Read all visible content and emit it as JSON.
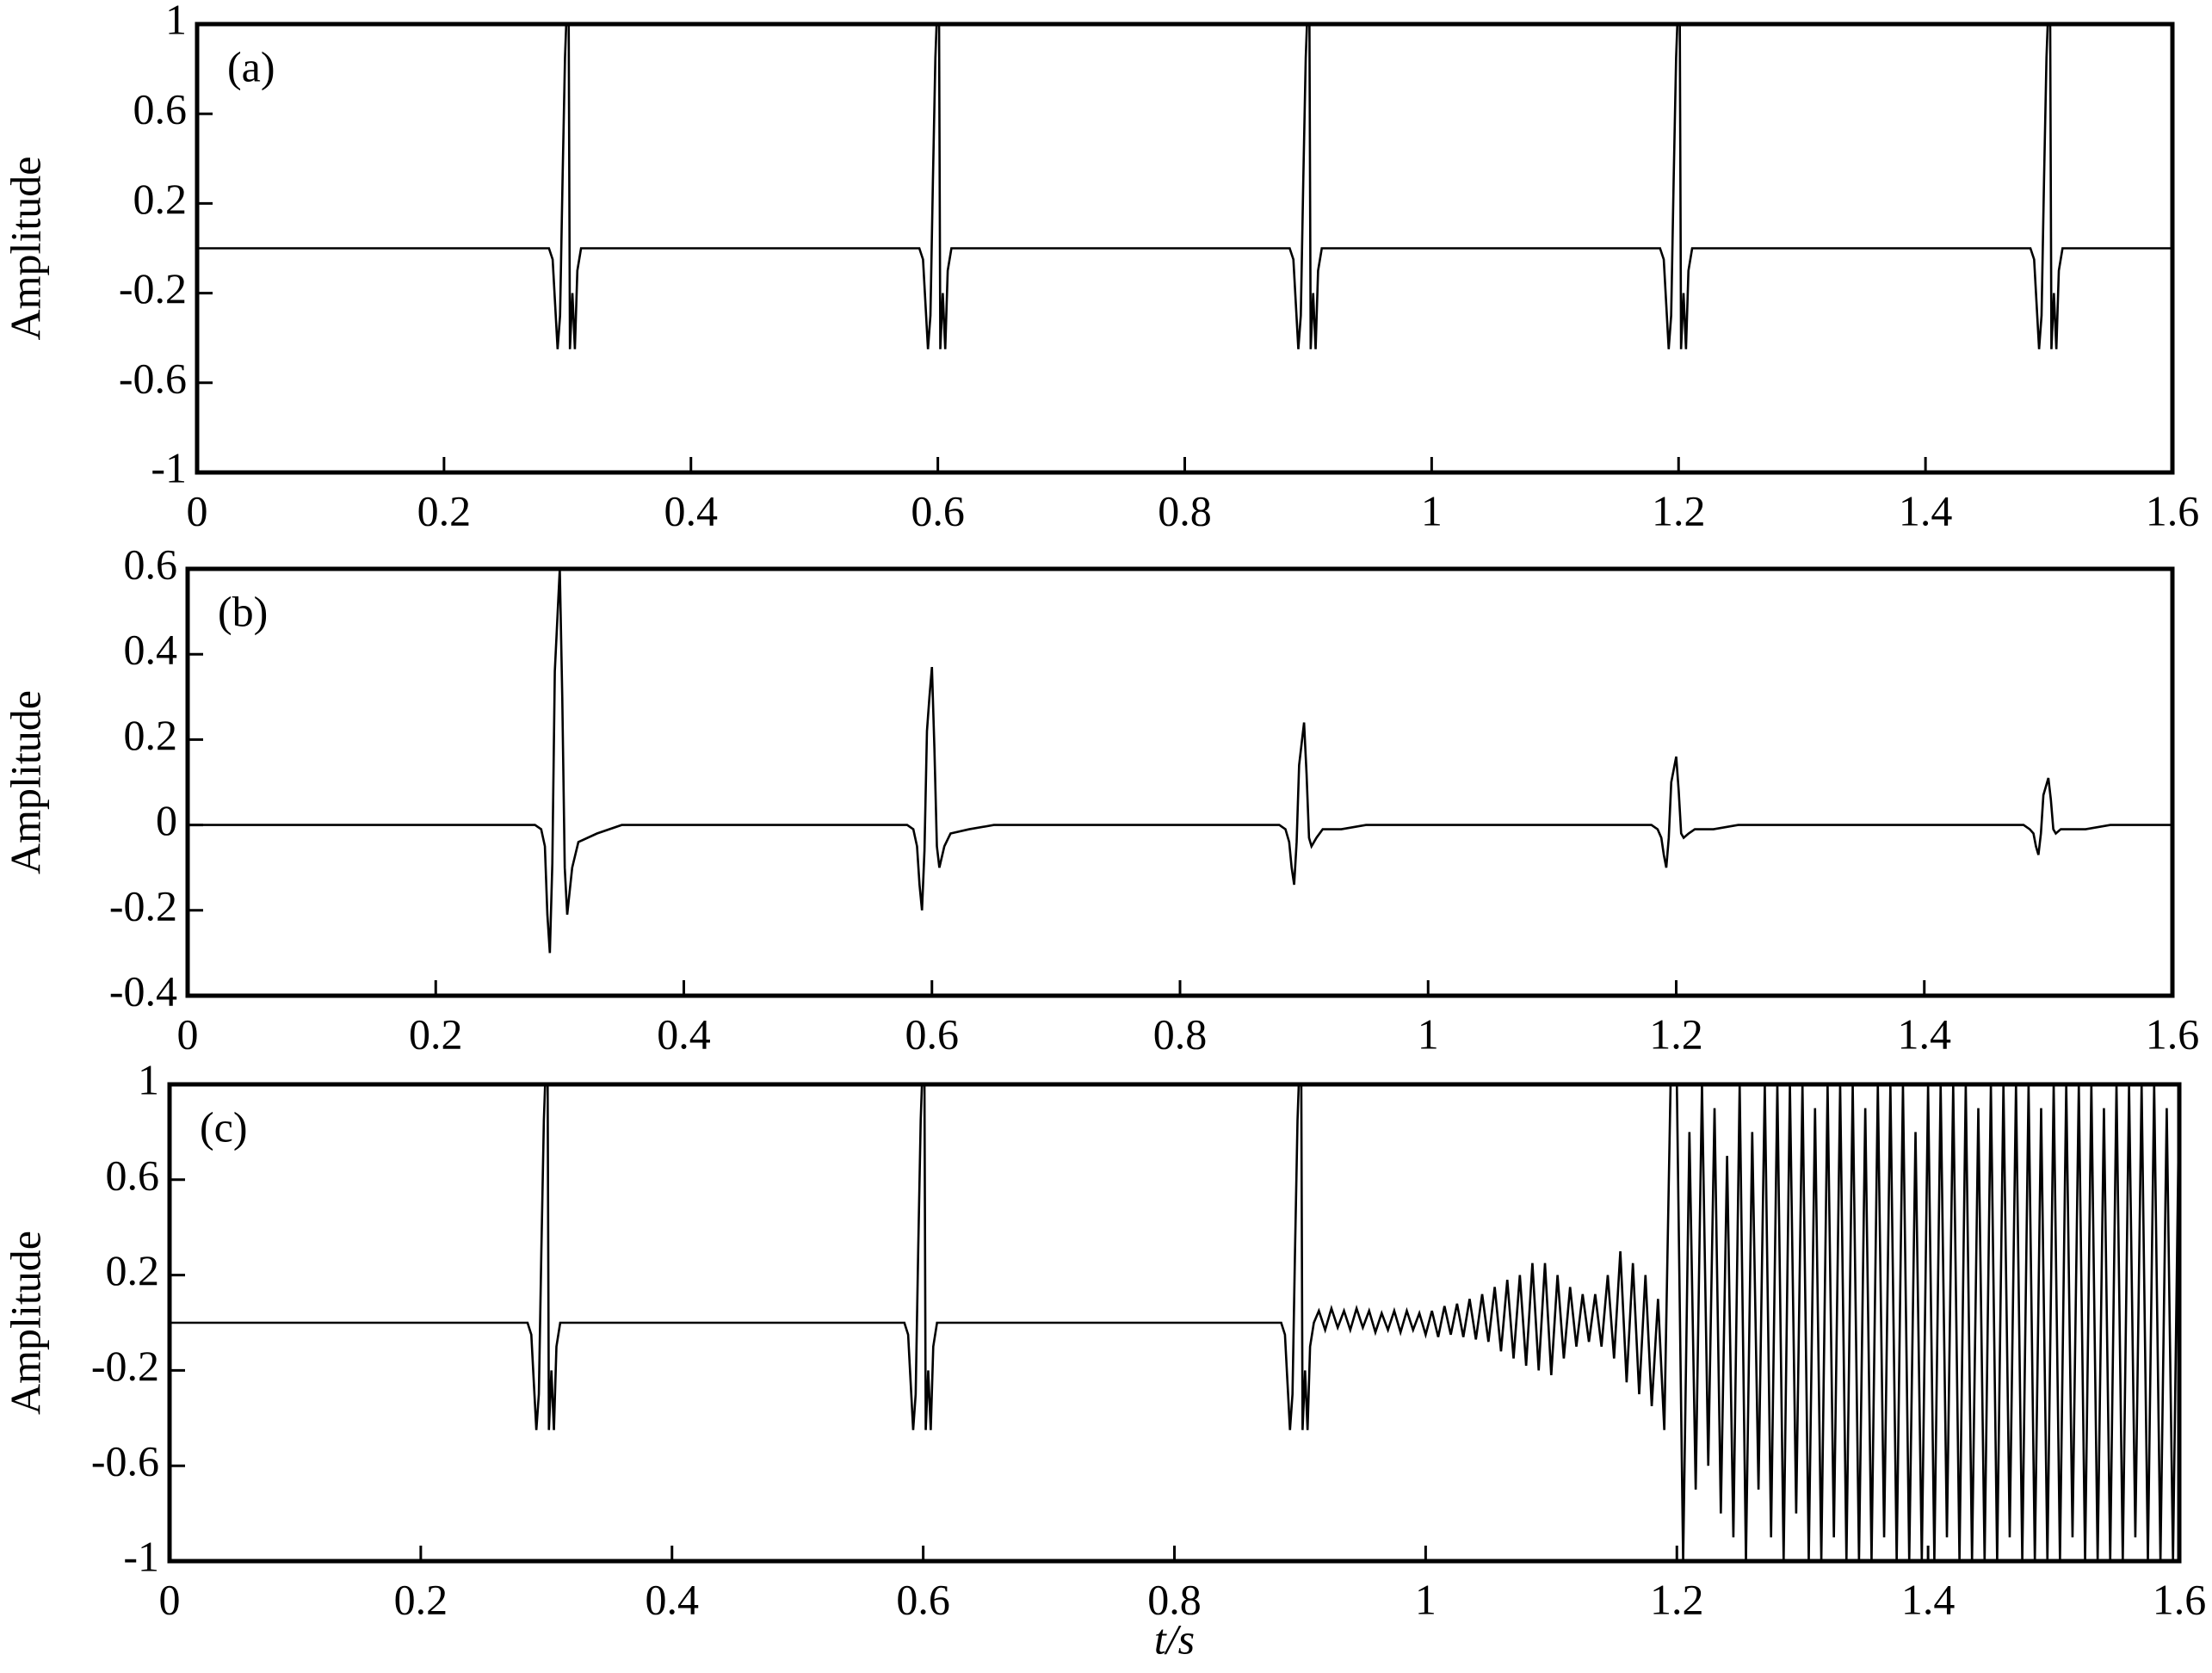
{
  "chart_data": [
    {
      "type": "line",
      "label": "(a)",
      "ylabel": "Amplitude",
      "color": "#000000",
      "xlim": [
        0,
        1.6
      ],
      "xticks": [
        0,
        0.2,
        0.4,
        0.6,
        0.8,
        1,
        1.2,
        1.4,
        1.6
      ],
      "ylim": [
        -1,
        1
      ],
      "yticks": [
        -1,
        -0.6,
        -0.2,
        0.2,
        0.6,
        1
      ],
      "x": [
        0,
        0.285,
        0.288,
        0.29,
        0.292,
        0.294,
        0.296,
        0.298,
        0.299,
        0.301,
        0.302,
        0.304,
        0.306,
        0.308,
        0.311,
        0.585,
        0.588,
        0.59,
        0.592,
        0.594,
        0.596,
        0.598,
        0.599,
        0.601,
        0.602,
        0.604,
        0.606,
        0.608,
        0.611,
        0.885,
        0.888,
        0.89,
        0.892,
        0.894,
        0.896,
        0.898,
        0.899,
        0.901,
        0.902,
        0.904,
        0.906,
        0.908,
        0.911,
        1.185,
        1.188,
        1.19,
        1.192,
        1.194,
        1.196,
        1.198,
        1.199,
        1.201,
        1.202,
        1.204,
        1.206,
        1.208,
        1.211,
        1.485,
        1.488,
        1.49,
        1.492,
        1.494,
        1.496,
        1.498,
        1.499,
        1.501,
        1.502,
        1.504,
        1.506,
        1.508,
        1.511,
        1.6
      ],
      "values": [
        0,
        0,
        -0.05,
        -0.25,
        -0.45,
        -0.3,
        0.3,
        0.85,
        1,
        1,
        -0.45,
        -0.2,
        -0.45,
        -0.1,
        0,
        0,
        -0.05,
        -0.25,
        -0.45,
        -0.3,
        0.3,
        0.85,
        1,
        1,
        -0.45,
        -0.2,
        -0.45,
        -0.1,
        0,
        0,
        -0.05,
        -0.25,
        -0.45,
        -0.3,
        0.3,
        0.85,
        1,
        1,
        -0.45,
        -0.2,
        -0.45,
        -0.1,
        0,
        0,
        -0.05,
        -0.25,
        -0.45,
        -0.3,
        0.3,
        0.85,
        1,
        1,
        -0.45,
        -0.2,
        -0.45,
        -0.1,
        0,
        0,
        -0.05,
        -0.25,
        -0.45,
        -0.3,
        0.3,
        0.85,
        1,
        1,
        -0.45,
        -0.2,
        -0.45,
        -0.1,
        0,
        0
      ]
    },
    {
      "type": "line",
      "label": "(b)",
      "ylabel": "Amplitude",
      "color": "#000000",
      "xlim": [
        0,
        1.6
      ],
      "xticks": [
        0,
        0.2,
        0.4,
        0.6,
        0.8,
        1,
        1.2,
        1.4,
        1.6
      ],
      "ylim": [
        -0.4,
        0.6
      ],
      "yticks": [
        -0.4,
        -0.2,
        0,
        0.2,
        0.4,
        0.6
      ],
      "x": [
        0,
        0.28,
        0.285,
        0.288,
        0.29,
        0.292,
        0.294,
        0.296,
        0.298,
        0.3,
        0.302,
        0.304,
        0.306,
        0.31,
        0.315,
        0.33,
        0.35,
        0.58,
        0.585,
        0.588,
        0.59,
        0.592,
        0.594,
        0.596,
        0.598,
        0.6,
        0.602,
        0.604,
        0.606,
        0.61,
        0.615,
        0.63,
        0.65,
        0.88,
        0.885,
        0.888,
        0.89,
        0.892,
        0.894,
        0.896,
        0.898,
        0.9,
        0.902,
        0.904,
        0.906,
        0.91,
        0.915,
        0.93,
        0.95,
        1.18,
        1.185,
        1.188,
        1.19,
        1.192,
        1.194,
        1.196,
        1.198,
        1.2,
        1.202,
        1.204,
        1.206,
        1.21,
        1.215,
        1.23,
        1.25,
        1.48,
        1.485,
        1.488,
        1.49,
        1.492,
        1.494,
        1.496,
        1.498,
        1.5,
        1.502,
        1.504,
        1.506,
        1.51,
        1.515,
        1.53,
        1.55,
        1.6
      ],
      "values": [
        0,
        0,
        -0.01,
        -0.05,
        -0.21,
        -0.3,
        -0.09,
        0.36,
        0.48,
        0.6,
        0.3,
        -0.1,
        -0.21,
        -0.1,
        -0.04,
        -0.02,
        0,
        0,
        -0.01,
        -0.05,
        -0.14,
        -0.2,
        -0.06,
        0.22,
        0.3,
        0.37,
        0.18,
        -0.05,
        -0.1,
        -0.05,
        -0.02,
        -0.01,
        0,
        0,
        -0.01,
        -0.04,
        -0.1,
        -0.14,
        -0.04,
        0.14,
        0.19,
        0.24,
        0.12,
        -0.03,
        -0.05,
        -0.03,
        -0.01,
        -0.01,
        0,
        0,
        -0.01,
        -0.03,
        -0.07,
        -0.1,
        -0.03,
        0.1,
        0.13,
        0.16,
        0.08,
        -0.02,
        -0.03,
        -0.02,
        -0.01,
        -0.01,
        0,
        0,
        -0.01,
        -0.02,
        -0.05,
        -0.07,
        -0.02,
        0.07,
        0.09,
        0.11,
        0.06,
        -0.01,
        -0.02,
        -0.01,
        -0.01,
        -0.01,
        0,
        0
      ]
    },
    {
      "type": "line",
      "label": "(c)",
      "ylabel": "Amplitude",
      "xlabel": "t/s",
      "color": "#000000",
      "xlim": [
        0,
        1.6
      ],
      "xticks": [
        0,
        0.2,
        0.4,
        0.6,
        0.8,
        1,
        1.2,
        1.4,
        1.6
      ],
      "ylim": [
        -1,
        1
      ],
      "yticks": [
        -1,
        -0.6,
        -0.2,
        0.2,
        0.6,
        1
      ],
      "x": [
        0,
        0.285,
        0.288,
        0.29,
        0.292,
        0.294,
        0.296,
        0.298,
        0.299,
        0.301,
        0.302,
        0.304,
        0.306,
        0.308,
        0.311,
        0.585,
        0.588,
        0.59,
        0.592,
        0.594,
        0.596,
        0.598,
        0.599,
        0.601,
        0.602,
        0.604,
        0.606,
        0.608,
        0.611,
        0.885,
        0.888,
        0.89,
        0.892,
        0.894,
        0.896,
        0.898,
        0.899,
        0.901,
        0.902,
        0.904,
        0.906,
        0.908,
        0.911,
        0.915,
        0.92,
        0.925,
        0.93,
        0.935,
        0.94,
        0.945,
        0.95,
        0.955,
        0.96,
        0.965,
        0.97,
        0.975,
        0.98,
        0.985,
        0.99,
        0.995,
        1,
        1.005,
        1.01,
        1.015,
        1.02,
        1.025,
        1.03,
        1.035,
        1.04,
        1.045,
        1.05,
        1.055,
        1.06,
        1.065,
        1.07,
        1.075,
        1.08,
        1.085,
        1.09,
        1.095,
        1.1,
        1.105,
        1.11,
        1.115,
        1.12,
        1.125,
        1.13,
        1.135,
        1.14,
        1.145,
        1.15,
        1.155,
        1.16,
        1.165,
        1.17,
        1.175,
        1.18,
        1.185,
        1.19,
        1.195,
        1.2,
        1.205,
        1.21,
        1.215,
        1.22,
        1.225,
        1.23,
        1.235,
        1.24,
        1.245,
        1.25,
        1.255,
        1.26,
        1.265,
        1.27,
        1.275,
        1.28,
        1.285,
        1.29,
        1.295,
        1.3,
        1.305,
        1.31,
        1.315,
        1.32,
        1.325,
        1.33,
        1.335,
        1.34,
        1.345,
        1.35,
        1.355,
        1.36,
        1.365,
        1.37,
        1.375,
        1.38,
        1.385,
        1.39,
        1.395,
        1.4,
        1.405,
        1.41,
        1.415,
        1.42,
        1.425,
        1.43,
        1.435,
        1.44,
        1.445,
        1.45,
        1.455,
        1.46,
        1.465,
        1.47,
        1.475,
        1.48,
        1.485,
        1.49,
        1.495,
        1.5,
        1.505,
        1.51,
        1.515,
        1.52,
        1.525,
        1.53,
        1.535,
        1.54,
        1.545,
        1.55,
        1.555,
        1.56,
        1.565,
        1.57,
        1.575,
        1.58,
        1.585,
        1.59,
        1.595,
        1.6
      ],
      "values": [
        0,
        0,
        -0.05,
        -0.25,
        -0.45,
        -0.3,
        0.3,
        0.85,
        1,
        1,
        -0.45,
        -0.2,
        -0.45,
        -0.1,
        0,
        0,
        -0.05,
        -0.25,
        -0.45,
        -0.3,
        0.3,
        0.85,
        1,
        1,
        -0.45,
        -0.2,
        -0.45,
        -0.1,
        0,
        0,
        -0.05,
        -0.25,
        -0.45,
        -0.3,
        0.3,
        0.85,
        1,
        1,
        -0.45,
        -0.2,
        -0.45,
        -0.1,
        0,
        0.05,
        -0.03,
        0.06,
        -0.02,
        0.05,
        -0.03,
        0.06,
        -0.02,
        0.05,
        -0.04,
        0.04,
        -0.03,
        0.05,
        -0.04,
        0.05,
        -0.03,
        0.04,
        -0.05,
        0.05,
        -0.06,
        0.07,
        -0.05,
        0.08,
        -0.06,
        0.1,
        -0.07,
        0.12,
        -0.08,
        0.15,
        -0.12,
        0.18,
        -0.15,
        0.2,
        -0.18,
        0.25,
        -0.2,
        0.25,
        -0.22,
        0.2,
        -0.15,
        0.15,
        -0.1,
        0.12,
        -0.08,
        0.12,
        -0.1,
        0.2,
        -0.15,
        0.3,
        -0.25,
        0.25,
        -0.3,
        0.2,
        -0.35,
        0.1,
        -0.45,
        1,
        1,
        -1,
        0.8,
        -0.7,
        1,
        -0.6,
        0.9,
        -0.8,
        0.7,
        -0.9,
        1,
        -1,
        0.8,
        -0.7,
        1,
        -0.9,
        1,
        -1,
        1,
        -0.8,
        1,
        -1,
        0.9,
        -1,
        1,
        -0.9,
        1,
        -1,
        1,
        -1,
        0.9,
        -1,
        1,
        -0.9,
        1,
        -1,
        1,
        -1,
        0.8,
        -1,
        1,
        -1,
        1,
        -0.9,
        1,
        -1,
        1,
        -1,
        0.9,
        -1,
        1,
        -1,
        1,
        -0.9,
        1,
        -1,
        1,
        -1,
        0.9,
        -1,
        1,
        -1,
        1,
        -0.9,
        1,
        -1,
        1,
        -1,
        0.9,
        -1,
        1,
        -1,
        1,
        -0.9,
        1,
        -1,
        1,
        -1,
        0.9,
        -1,
        1
      ]
    }
  ]
}
